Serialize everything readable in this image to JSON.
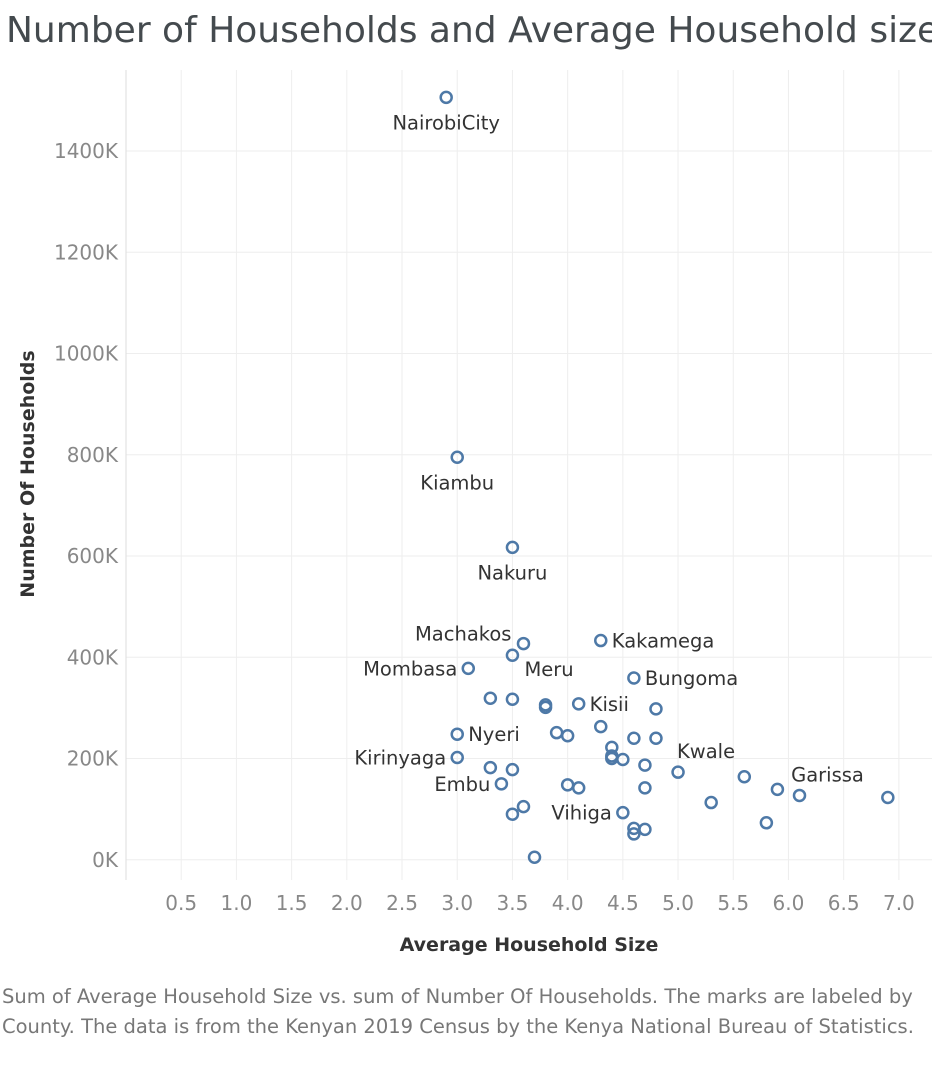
{
  "caption": "Sum of Average Household Size vs. sum of Number Of Households.  The marks are labeled by County. The data is from the Kenyan 2019 Census by the Kenya National Bureau of Statistics.",
  "chart_data": {
    "type": "scatter",
    "title": "Number of Households and Average Household size",
    "xlabel": "Average Household Size",
    "ylabel": "Number Of Households",
    "xlim": [
      0,
      7.3
    ],
    "ylim": [
      -40000,
      1560000
    ],
    "x_ticks": [
      0.5,
      1.0,
      1.5,
      2.0,
      2.5,
      3.0,
      3.5,
      4.0,
      4.5,
      5.0,
      5.5,
      6.0,
      6.5,
      7.0
    ],
    "x_tick_labels": [
      "0.5",
      "1.0",
      "1.5",
      "2.0",
      "2.5",
      "3.0",
      "3.5",
      "4.0",
      "4.5",
      "5.0",
      "5.5",
      "6.0",
      "6.5",
      "7.0"
    ],
    "y_ticks": [
      0,
      200000,
      400000,
      600000,
      800000,
      1000000,
      1200000,
      1400000
    ],
    "y_tick_labels": [
      "0K",
      "200K",
      "400K",
      "600K",
      "800K",
      "1000K",
      "1200K",
      "1400K"
    ],
    "grid": true,
    "marker_color": "#4e79a7",
    "points": [
      {
        "x": 2.9,
        "y": 1506000,
        "label": "NairobiCity",
        "label_pos": "below"
      },
      {
        "x": 3.0,
        "y": 795000,
        "label": "Kiambu",
        "label_pos": "below"
      },
      {
        "x": 3.5,
        "y": 617000,
        "label": "Nakuru",
        "label_pos": "below"
      },
      {
        "x": 3.6,
        "y": 427000,
        "label": "Machakos",
        "label_pos": "above-left"
      },
      {
        "x": 4.3,
        "y": 433000,
        "label": "Kakamega",
        "label_pos": "right"
      },
      {
        "x": 3.1,
        "y": 378000,
        "label": "Mombasa",
        "label_pos": "left"
      },
      {
        "x": 3.5,
        "y": 404000,
        "label": "Meru",
        "label_pos": "below-right"
      },
      {
        "x": 4.6,
        "y": 359000,
        "label": "Bungoma",
        "label_pos": "right"
      },
      {
        "x": 4.1,
        "y": 308000,
        "label": "Kisii",
        "label_pos": "right"
      },
      {
        "x": 3.0,
        "y": 248000,
        "label": "Nyeri",
        "label_pos": "right"
      },
      {
        "x": 3.0,
        "y": 202000,
        "label": "Kirinyaga",
        "label_pos": "left"
      },
      {
        "x": 5.0,
        "y": 173000,
        "label": "Kwale",
        "label_pos": "above-right"
      },
      {
        "x": 6.1,
        "y": 127000,
        "label": "Garissa",
        "label_pos": "above-right"
      },
      {
        "x": 3.4,
        "y": 150000,
        "label": "Embu",
        "label_pos": "left"
      },
      {
        "x": 4.5,
        "y": 93000,
        "label": "Vihiga",
        "label_pos": "left"
      },
      {
        "x": 3.3,
        "y": 319000,
        "label": ""
      },
      {
        "x": 3.5,
        "y": 317000,
        "label": ""
      },
      {
        "x": 3.8,
        "y": 306000,
        "label": ""
      },
      {
        "x": 3.8,
        "y": 301000,
        "label": ""
      },
      {
        "x": 4.8,
        "y": 298000,
        "label": ""
      },
      {
        "x": 4.3,
        "y": 263000,
        "label": ""
      },
      {
        "x": 3.9,
        "y": 251000,
        "label": ""
      },
      {
        "x": 4.0,
        "y": 245000,
        "label": ""
      },
      {
        "x": 4.6,
        "y": 240000,
        "label": ""
      },
      {
        "x": 4.8,
        "y": 240000,
        "label": ""
      },
      {
        "x": 4.4,
        "y": 222000,
        "label": ""
      },
      {
        "x": 4.4,
        "y": 205000,
        "label": ""
      },
      {
        "x": 4.4,
        "y": 200000,
        "label": ""
      },
      {
        "x": 4.5,
        "y": 198000,
        "label": ""
      },
      {
        "x": 4.7,
        "y": 187000,
        "label": ""
      },
      {
        "x": 3.3,
        "y": 182000,
        "label": ""
      },
      {
        "x": 3.5,
        "y": 178000,
        "label": ""
      },
      {
        "x": 5.6,
        "y": 164000,
        "label": ""
      },
      {
        "x": 4.0,
        "y": 148000,
        "label": ""
      },
      {
        "x": 4.1,
        "y": 142000,
        "label": ""
      },
      {
        "x": 4.7,
        "y": 142000,
        "label": ""
      },
      {
        "x": 5.9,
        "y": 139000,
        "label": ""
      },
      {
        "x": 6.9,
        "y": 123000,
        "label": ""
      },
      {
        "x": 5.3,
        "y": 113000,
        "label": ""
      },
      {
        "x": 3.6,
        "y": 105000,
        "label": ""
      },
      {
        "x": 3.5,
        "y": 90000,
        "label": ""
      },
      {
        "x": 5.8,
        "y": 73000,
        "label": ""
      },
      {
        "x": 4.6,
        "y": 62000,
        "label": ""
      },
      {
        "x": 4.7,
        "y": 60000,
        "label": ""
      },
      {
        "x": 4.6,
        "y": 51000,
        "label": ""
      },
      {
        "x": 3.7,
        "y": 5000,
        "label": ""
      }
    ]
  }
}
